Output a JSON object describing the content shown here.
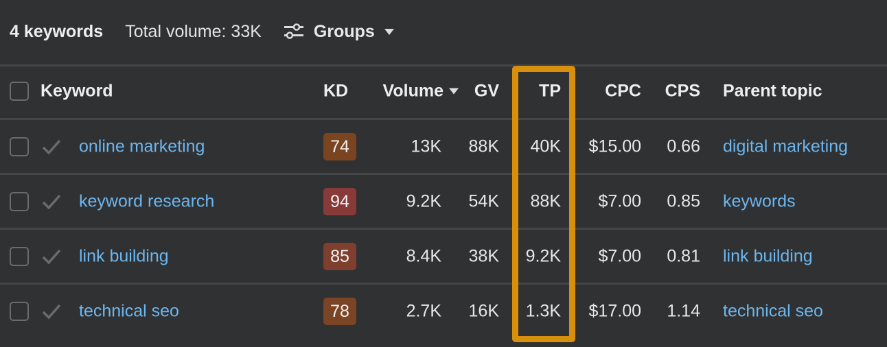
{
  "summary": {
    "count": "4 keywords",
    "total_volume": "Total volume: 33K",
    "groups_label": "Groups"
  },
  "columns": {
    "keyword": "Keyword",
    "kd": "KD",
    "volume": "Volume",
    "gv": "GV",
    "tp": "TP",
    "cpc": "CPC",
    "cps": "CPS",
    "parent_topic": "Parent topic"
  },
  "rows": [
    {
      "keyword": "online marketing",
      "kd": "74",
      "kd_color": "#7a4421",
      "volume": "13K",
      "gv": "88K",
      "tp": "40K",
      "cpc": "$15.00",
      "cps": "0.66",
      "parent_topic": "digital marketing"
    },
    {
      "keyword": "keyword research",
      "kd": "94",
      "kd_color": "#883a38",
      "volume": "9.2K",
      "gv": "54K",
      "tp": "88K",
      "cpc": "$7.00",
      "cps": "0.85",
      "parent_topic": "keywords"
    },
    {
      "keyword": "link building",
      "kd": "85",
      "kd_color": "#7f3f2e",
      "volume": "8.4K",
      "gv": "38K",
      "tp": "9.2K",
      "cpc": "$7.00",
      "cps": "0.81",
      "parent_topic": "link building"
    },
    {
      "keyword": "technical seo",
      "kd": "78",
      "kd_color": "#7b4424",
      "volume": "2.7K",
      "gv": "16K",
      "tp": "1.3K",
      "cpc": "$17.00",
      "cps": "1.14",
      "parent_topic": "technical seo"
    }
  ],
  "colors": {
    "background": "#303133",
    "link": "#6cb6ef",
    "highlight": "#d8900c"
  }
}
